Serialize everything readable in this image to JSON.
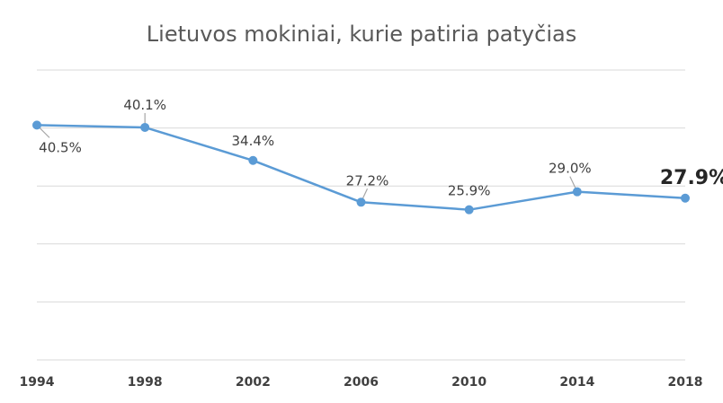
{
  "chart_data": {
    "type": "line",
    "title": "Lietuvos mokiniai, kurie patiria patyčias",
    "xlabel": "",
    "ylabel": "",
    "categories": [
      "1994",
      "1998",
      "2002",
      "2006",
      "2010",
      "2014",
      "2018"
    ],
    "series": [
      {
        "values": [
          40.5,
          40.1,
          34.4,
          27.2,
          25.9,
          29.0,
          27.9
        ],
        "labels": [
          "40.5%",
          "40.1%",
          "34.4%",
          "27.2%",
          "25.9%",
          "29.0%",
          "27.9%"
        ],
        "color": "#5b9bd5"
      }
    ],
    "ylim": [
      0,
      50
    ],
    "y_grid_step": 10,
    "grid": true,
    "legend": "none",
    "emphasized_label_index": 6
  }
}
